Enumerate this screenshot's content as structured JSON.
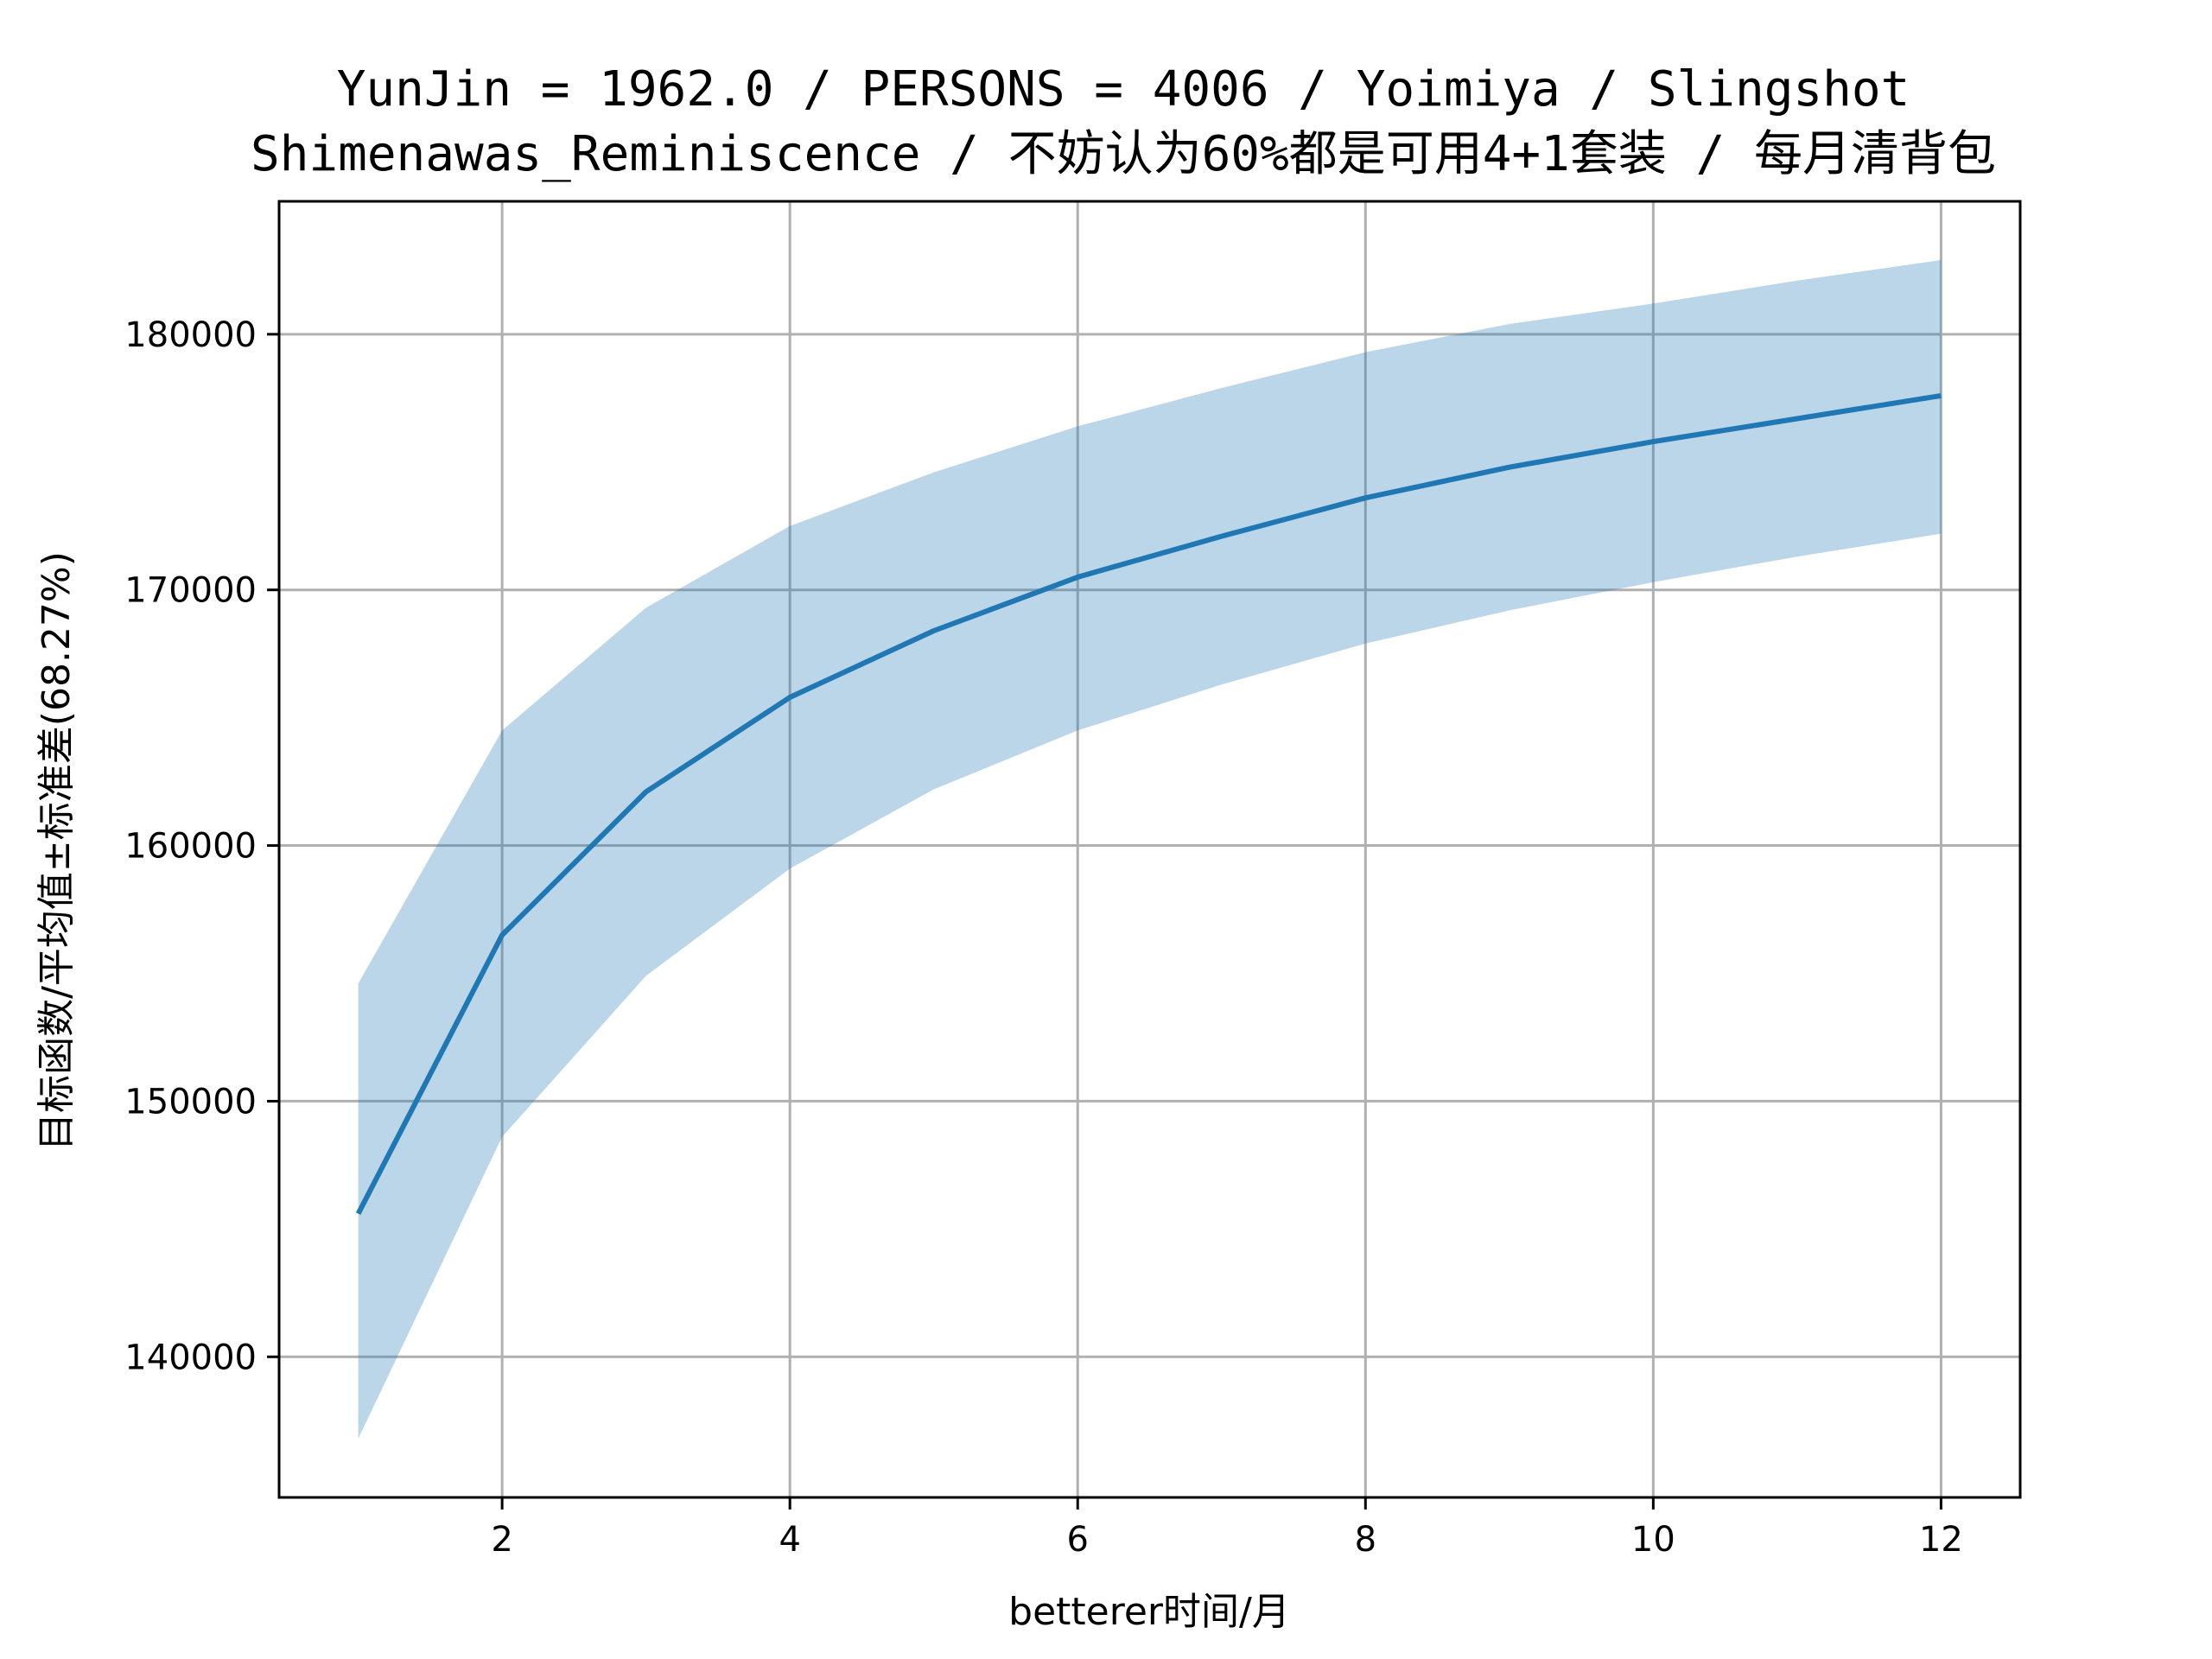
{
  "chart_data": {
    "type": "line",
    "title_line1": "YunJin = 1962.0 / PERSONS = 4006 / Yoimiya / Slingshot",
    "title_line2": "Shimenawas_Reminiscence / 不妨认为60%都是可用4+1套装 / 每月清背包",
    "xlabel": "betterer时间/月",
    "ylabel": "目标函数/平均值±标准差(68.27%)",
    "xlim": [
      0.45,
      12.55
    ],
    "ylim": [
      134500,
      185200
    ],
    "xticks": [
      2,
      4,
      6,
      8,
      10,
      12
    ],
    "yticks": [
      140000,
      150000,
      160000,
      170000,
      180000
    ],
    "grid": true,
    "x": [
      1,
      2,
      3,
      4,
      5,
      6,
      7,
      8,
      9,
      10,
      11,
      12
    ],
    "mean": [
      145600,
      156500,
      162100,
      165800,
      168400,
      170500,
      172100,
      173600,
      174800,
      175800,
      176700,
      177600
    ],
    "upper": [
      154600,
      164500,
      169300,
      172500,
      174600,
      176400,
      177900,
      179300,
      180400,
      181200,
      182100,
      182900
    ],
    "lower": [
      136800,
      148600,
      154900,
      159100,
      162200,
      164500,
      166300,
      167900,
      169200,
      170300,
      171300,
      172200
    ],
    "colors": {
      "line": "#1f77b4",
      "band": "#1f77b4",
      "grid": "#b0b0b0",
      "axes": "#000000"
    }
  }
}
